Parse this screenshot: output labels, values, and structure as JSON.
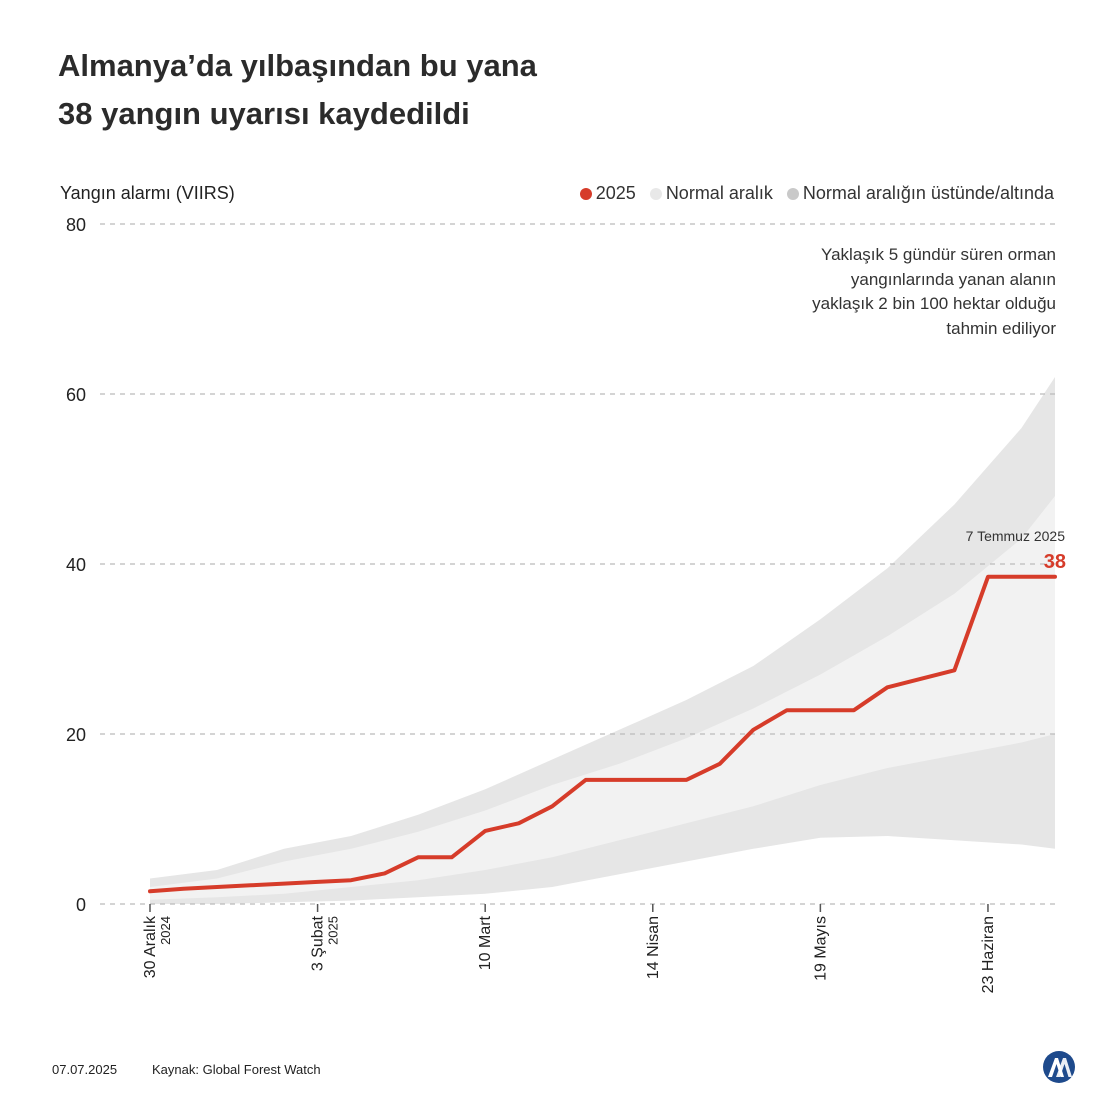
{
  "title": {
    "line1": "Almanya’da yılbaşından bu yana",
    "line2": "38 yangın uyarısı kaydedildi"
  },
  "legend": {
    "series": "2025",
    "normal": "Normal aralık",
    "outer": "Normal aralığın üstünde/altında"
  },
  "annotation": {
    "lines": [
      "Yaklaşık 5 gündür süren orman",
      "yangınlarında yanan alanın",
      "yaklaşık 2 bin 100 hektar olduğu",
      "tahmin ediliyor"
    ]
  },
  "callout": {
    "date": "7 Temmuz 2025",
    "value": "38"
  },
  "footer": {
    "date": "07.07.2025",
    "source": "Kaynak: Global Forest Watch"
  },
  "colors": {
    "series": "#d63c2a",
    "normal_band": "#f2f2f2",
    "outer_band": "#e6e6e6",
    "grid": "#bbbbbb",
    "logo": "#1e4a8c"
  },
  "chart_data": {
    "type": "area",
    "title": "Almanya’da yılbaşından bu yana 38 yangın uyarısı kaydedildi",
    "ylabel": "Yangın alarmı (VIIRS)",
    "xlabel": "",
    "ylim": [
      0,
      80
    ],
    "yticks": [
      0,
      20,
      40,
      60,
      80
    ],
    "x_unit": "days since 30 Aralık 2024",
    "xlim": [
      0,
      189
    ],
    "x_ticks": [
      {
        "x": 0,
        "label": "30 Aralık",
        "sublabel": "2024"
      },
      {
        "x": 35,
        "label": "3 Şubat",
        "sublabel": "2025"
      },
      {
        "x": 70,
        "label": "10 Mart",
        "sublabel": ""
      },
      {
        "x": 105,
        "label": "14 Nisan",
        "sublabel": ""
      },
      {
        "x": 140,
        "label": "19 Mayıs",
        "sublabel": ""
      },
      {
        "x": 175,
        "label": "23 Haziran",
        "sublabel": ""
      }
    ],
    "series": [
      {
        "name": "2025",
        "x": [
          0,
          7,
          14,
          21,
          28,
          35,
          42,
          49,
          56,
          63,
          70,
          77,
          84,
          91,
          98,
          105,
          112,
          119,
          126,
          133,
          140,
          147,
          154,
          161,
          168,
          175,
          182,
          189
        ],
        "values": [
          1.5,
          1.8,
          2.0,
          2.2,
          2.4,
          2.6,
          2.8,
          3.6,
          5.5,
          5.5,
          8.6,
          9.5,
          11.5,
          14.6,
          14.6,
          14.6,
          14.6,
          16.5,
          20.5,
          22.8,
          22.8,
          22.8,
          25.5,
          26.5,
          27.5,
          38.5,
          38.5,
          38.5
        ]
      }
    ],
    "bands": [
      {
        "name": "Normal aralık",
        "x": [
          0,
          14,
          28,
          42,
          56,
          70,
          84,
          98,
          112,
          126,
          140,
          154,
          168,
          182,
          189
        ],
        "low": [
          0.5,
          0.8,
          1.2,
          2.0,
          2.8,
          4.0,
          5.5,
          7.5,
          9.5,
          11.5,
          14.0,
          16.0,
          17.5,
          19.0,
          20.0
        ],
        "high": [
          2.0,
          3.0,
          5.0,
          6.5,
          8.5,
          11.0,
          14.0,
          16.5,
          19.5,
          23.0,
          27.0,
          31.5,
          36.5,
          43.0,
          48.0
        ]
      },
      {
        "name": "Normal aralığın üstünde/altında",
        "x": [
          0,
          14,
          28,
          42,
          56,
          70,
          84,
          98,
          112,
          126,
          140,
          154,
          168,
          182,
          189
        ],
        "low": [
          0.0,
          0.0,
          0.2,
          0.4,
          0.8,
          1.2,
          2.0,
          3.5,
          5.0,
          6.5,
          7.8,
          8.0,
          7.5,
          7.0,
          6.5
        ],
        "high": [
          3.0,
          4.0,
          6.5,
          8.0,
          10.5,
          13.5,
          17.0,
          20.5,
          24.0,
          28.0,
          33.5,
          39.5,
          47.0,
          56.0,
          62.0
        ]
      }
    ],
    "annotations": [
      "Yaklaşık 5 gündür süren orman yangınlarında yanan alanın yaklaşık 2 bin 100 hektar olduğu tahmin ediliyor",
      "7 Temmuz 2025",
      "38"
    ]
  }
}
